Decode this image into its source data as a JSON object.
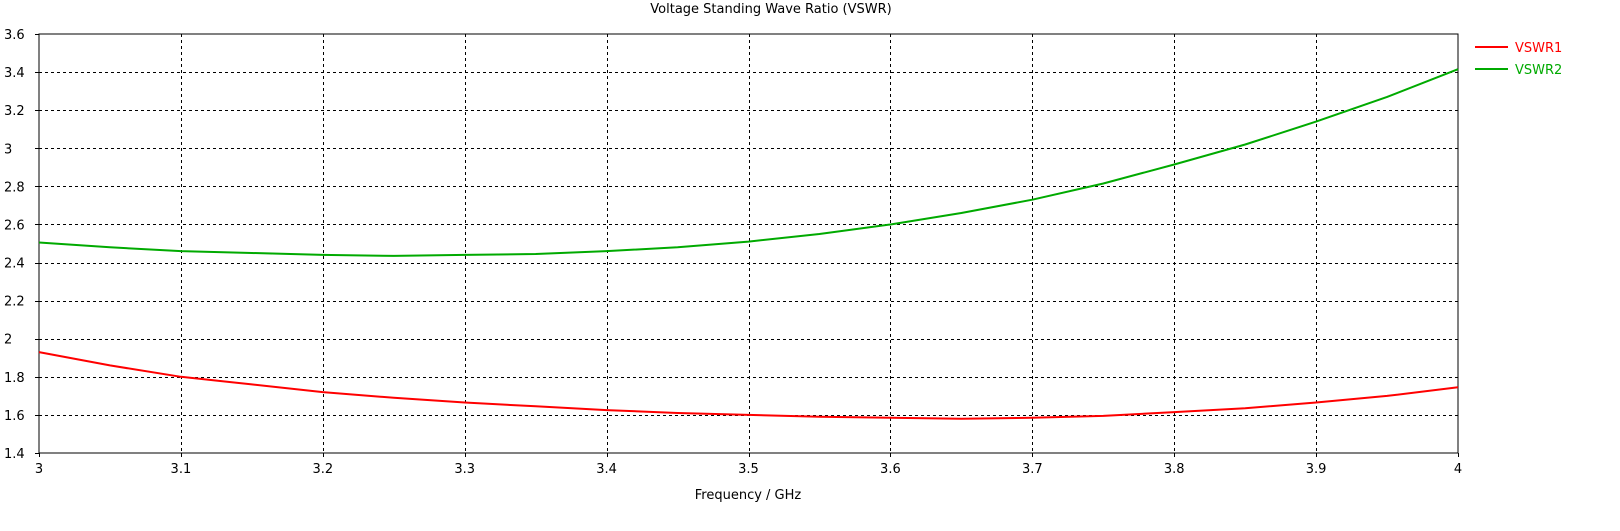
{
  "chart_data": {
    "type": "line",
    "title": "Voltage Standing Wave Ratio (VSWR)",
    "xlabel": "Frequency / GHz",
    "ylabel": "",
    "xlim": [
      3,
      4
    ],
    "ylim": [
      1.4,
      3.6
    ],
    "xticks": [
      3,
      3.1,
      3.2,
      3.3,
      3.4,
      3.5,
      3.6,
      3.7,
      3.8,
      3.9,
      4
    ],
    "xtick_labels": [
      "3",
      "3.1",
      "3.2",
      "3.3",
      "3.4",
      "3.5",
      "3.6",
      "3.7",
      "3.8",
      "3.9",
      "4"
    ],
    "yticks": [
      1.4,
      1.6,
      1.8,
      2,
      2.2,
      2.4,
      2.6,
      2.8,
      3,
      3.2,
      3.4,
      3.6
    ],
    "ytick_labels": [
      "1.4",
      "1.6",
      "1.8",
      "2",
      "2.2",
      "2.4",
      "2.6",
      "2.8",
      "3",
      "3.2",
      "3.4",
      "3.6"
    ],
    "grid": true,
    "legend_position": "top-right outside",
    "series": [
      {
        "name": "VSWR1",
        "color": "#ff0000",
        "x": [
          3.0,
          3.05,
          3.1,
          3.15,
          3.2,
          3.25,
          3.3,
          3.35,
          3.4,
          3.45,
          3.5,
          3.55,
          3.6,
          3.65,
          3.7,
          3.75,
          3.8,
          3.85,
          3.9,
          3.95,
          4.0
        ],
        "y": [
          1.93,
          1.86,
          1.8,
          1.76,
          1.72,
          1.69,
          1.665,
          1.645,
          1.625,
          1.61,
          1.6,
          1.59,
          1.585,
          1.58,
          1.585,
          1.595,
          1.615,
          1.635,
          1.665,
          1.7,
          1.745
        ]
      },
      {
        "name": "VSWR2",
        "color": "#00aa00",
        "x": [
          3.0,
          3.05,
          3.1,
          3.15,
          3.2,
          3.25,
          3.3,
          3.35,
          3.4,
          3.45,
          3.5,
          3.55,
          3.6,
          3.65,
          3.7,
          3.75,
          3.8,
          3.85,
          3.9,
          3.95,
          4.0
        ],
        "y": [
          2.505,
          2.48,
          2.46,
          2.45,
          2.44,
          2.435,
          2.44,
          2.445,
          2.46,
          2.48,
          2.51,
          2.55,
          2.6,
          2.66,
          2.73,
          2.815,
          2.915,
          3.02,
          3.14,
          3.27,
          3.415
        ]
      }
    ]
  }
}
